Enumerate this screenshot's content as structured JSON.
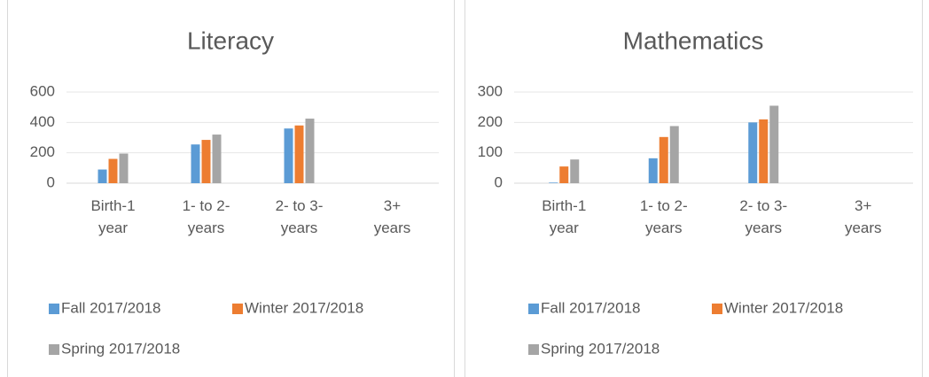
{
  "chart_data": [
    {
      "type": "bar",
      "title": "Literacy",
      "categories": [
        "Birth-1 year",
        "1- to 2-years",
        "2- to 3-years",
        "3+ years"
      ],
      "series": [
        {
          "name": "Fall 2017/2018",
          "color": "#5b9bd5",
          "values": [
            90,
            255,
            360,
            0
          ]
        },
        {
          "name": "Winter 2017/2018",
          "color": "#ed7d31",
          "values": [
            160,
            285,
            380,
            0
          ]
        },
        {
          "name": "Spring 2017/2018",
          "color": "#a5a5a5",
          "values": [
            195,
            320,
            425,
            0
          ]
        }
      ],
      "ylim": [
        0,
        600
      ],
      "yticks": [
        0,
        200,
        400,
        600
      ],
      "grid": true
    },
    {
      "type": "bar",
      "title": "Mathematics",
      "categories": [
        "Birth-1 year",
        "1- to 2-years",
        "2- to 3-years",
        "3+ years"
      ],
      "series": [
        {
          "name": "Fall 2017/2018",
          "color": "#5b9bd5",
          "values": [
            2,
            82,
            200,
            0
          ]
        },
        {
          "name": "Winter 2017/2018",
          "color": "#ed7d31",
          "values": [
            55,
            152,
            210,
            0
          ]
        },
        {
          "name": "Spring 2017/2018",
          "color": "#a5a5a5",
          "values": [
            78,
            188,
            255,
            0
          ]
        }
      ],
      "ylim": [
        0,
        300
      ],
      "yticks": [
        0,
        100,
        200,
        300
      ],
      "grid": true
    }
  ]
}
